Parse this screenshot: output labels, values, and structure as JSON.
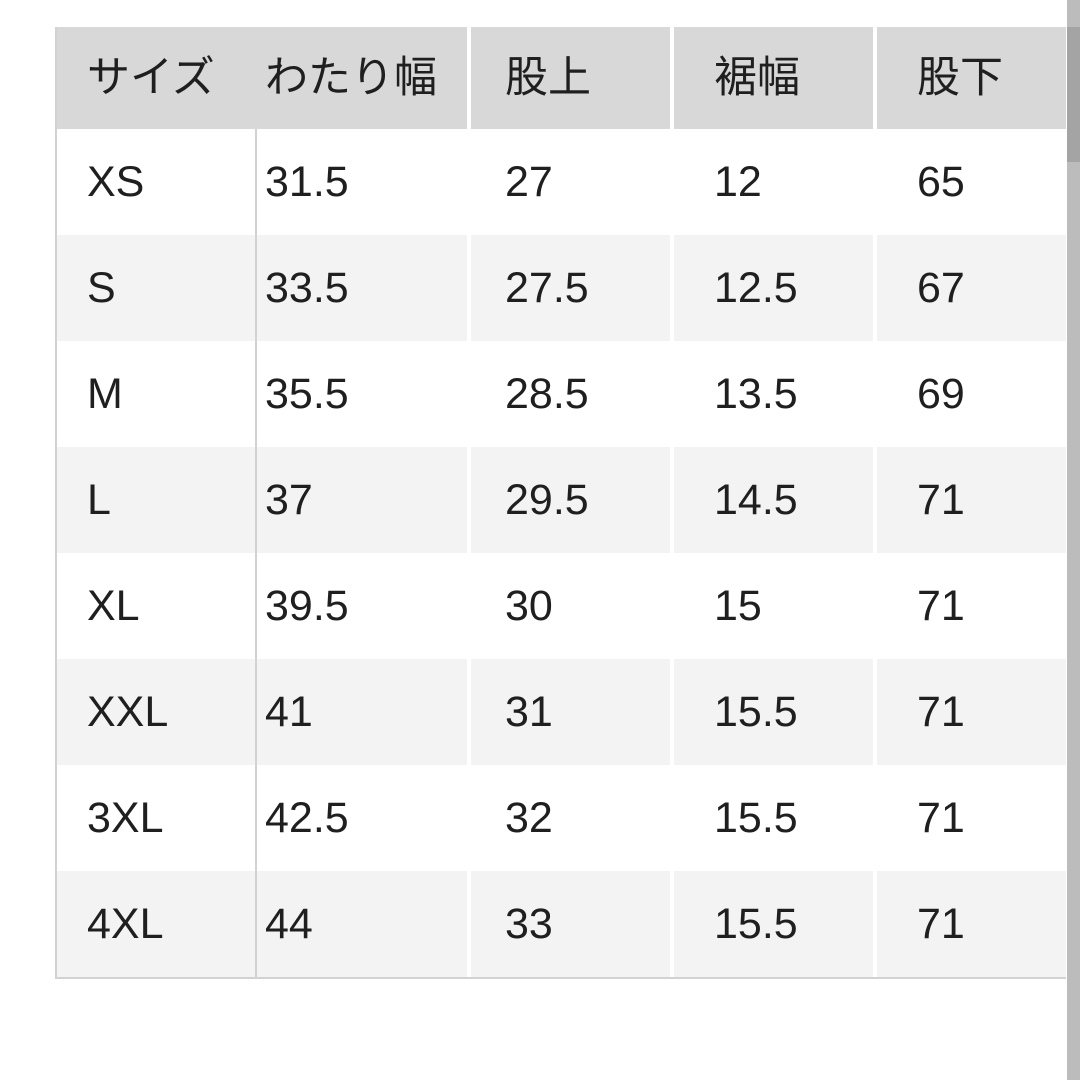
{
  "table": {
    "columns": [
      "サイズ",
      "わたり幅",
      "股上",
      "裾幅",
      "股下"
    ],
    "rows": [
      [
        "XS",
        "31.5",
        "27",
        "12",
        "65"
      ],
      [
        "S",
        "33.5",
        "27.5",
        "12.5",
        "67"
      ],
      [
        "M",
        "35.5",
        "28.5",
        "13.5",
        "69"
      ],
      [
        "L",
        "37",
        "29.5",
        "14.5",
        "71"
      ],
      [
        "XL",
        "39.5",
        "30",
        "15",
        "71"
      ],
      [
        "XXL",
        "41",
        "31",
        "15.5",
        "71"
      ],
      [
        "3XL",
        "42.5",
        "32",
        "15.5",
        "71"
      ],
      [
        "4XL",
        "44",
        "33",
        "15.5",
        "71"
      ]
    ]
  },
  "colors": {
    "canvas-bg": "#ffffff",
    "header-bg": "#d8d8d8",
    "row-alt-bg": "#f3f3f3",
    "border": "#d2d2d2",
    "gap": "#ffffff",
    "text": "#1f1f1f",
    "scroll-track": "#bcbcbc",
    "scroll-thumb": "#a4a4a4"
  }
}
